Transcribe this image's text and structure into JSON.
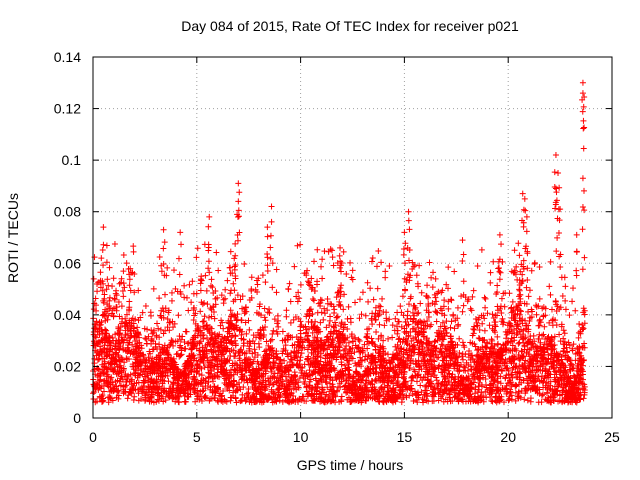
{
  "chart_data": {
    "type": "scatter",
    "title": "Day 084 of 2015, Rate Of TEC Index for receiver p021",
    "xlabel": "GPS time / hours",
    "ylabel": "ROTI / TECUs",
    "xlim": [
      0,
      25
    ],
    "ylim": [
      0,
      0.14
    ],
    "x_ticks": [
      0,
      5,
      10,
      15,
      20,
      25
    ],
    "y_ticks": [
      0,
      0.02,
      0.04,
      0.06,
      0.08,
      0.1,
      0.12,
      0.14
    ],
    "x_tick_labels": [
      "0",
      "5",
      "10",
      "15",
      "20",
      "25"
    ],
    "y_tick_labels": [
      "0",
      "0.02",
      "0.04",
      "0.06",
      "0.08",
      "0.1",
      "0.12",
      "0.14"
    ],
    "grid": true,
    "marker": "+",
    "color": "#ff0000",
    "x_range_of_data": [
      0,
      23.7
    ],
    "baseline_typical": 0.018,
    "notable_points": [
      {
        "x": 0.5,
        "y": 0.074
      },
      {
        "x": 0.4,
        "y": 0.062
      },
      {
        "x": 3.4,
        "y": 0.073
      },
      {
        "x": 4.2,
        "y": 0.072
      },
      {
        "x": 5.6,
        "y": 0.078
      },
      {
        "x": 7.0,
        "y": 0.091
      },
      {
        "x": 7.0,
        "y": 0.084
      },
      {
        "x": 8.6,
        "y": 0.082
      },
      {
        "x": 8.4,
        "y": 0.074
      },
      {
        "x": 11.9,
        "y": 0.066
      },
      {
        "x": 15.2,
        "y": 0.08
      },
      {
        "x": 15.0,
        "y": 0.072
      },
      {
        "x": 17.8,
        "y": 0.069
      },
      {
        "x": 19.6,
        "y": 0.071
      },
      {
        "x": 20.7,
        "y": 0.087
      },
      {
        "x": 20.8,
        "y": 0.085
      },
      {
        "x": 20.9,
        "y": 0.078
      },
      {
        "x": 22.3,
        "y": 0.102
      },
      {
        "x": 22.4,
        "y": 0.095
      },
      {
        "x": 22.3,
        "y": 0.089
      },
      {
        "x": 22.5,
        "y": 0.081
      },
      {
        "x": 23.6,
        "y": 0.13
      },
      {
        "x": 23.6,
        "y": 0.126
      },
      {
        "x": 23.6,
        "y": 0.093
      },
      {
        "x": 23.3,
        "y": 0.071
      }
    ]
  }
}
